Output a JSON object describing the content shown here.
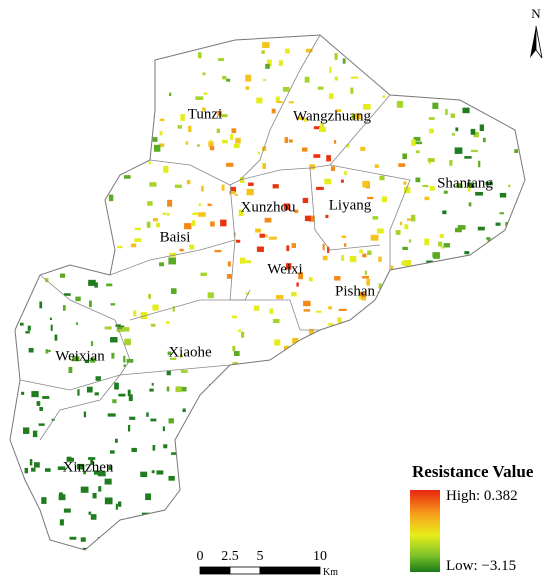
{
  "map": {
    "north": "N",
    "regions": [
      {
        "label": "Tunzi"
      },
      {
        "label": "Wangzhuang"
      },
      {
        "label": "Shantang"
      },
      {
        "label": "Xunzhou"
      },
      {
        "label": "Liyang"
      },
      {
        "label": "Baisi"
      },
      {
        "label": "Weixi"
      },
      {
        "label": "Pishan"
      },
      {
        "label": "Weixian"
      },
      {
        "label": "Xiaohe"
      },
      {
        "label": "Xinzhen"
      }
    ],
    "legend": {
      "title": "Resistance Value",
      "high": "High: 0.382",
      "low": "Low: −3.15"
    },
    "scale_bar": {
      "ticks": [
        0,
        2.5,
        5,
        10
      ],
      "unit": "Km"
    }
  }
}
